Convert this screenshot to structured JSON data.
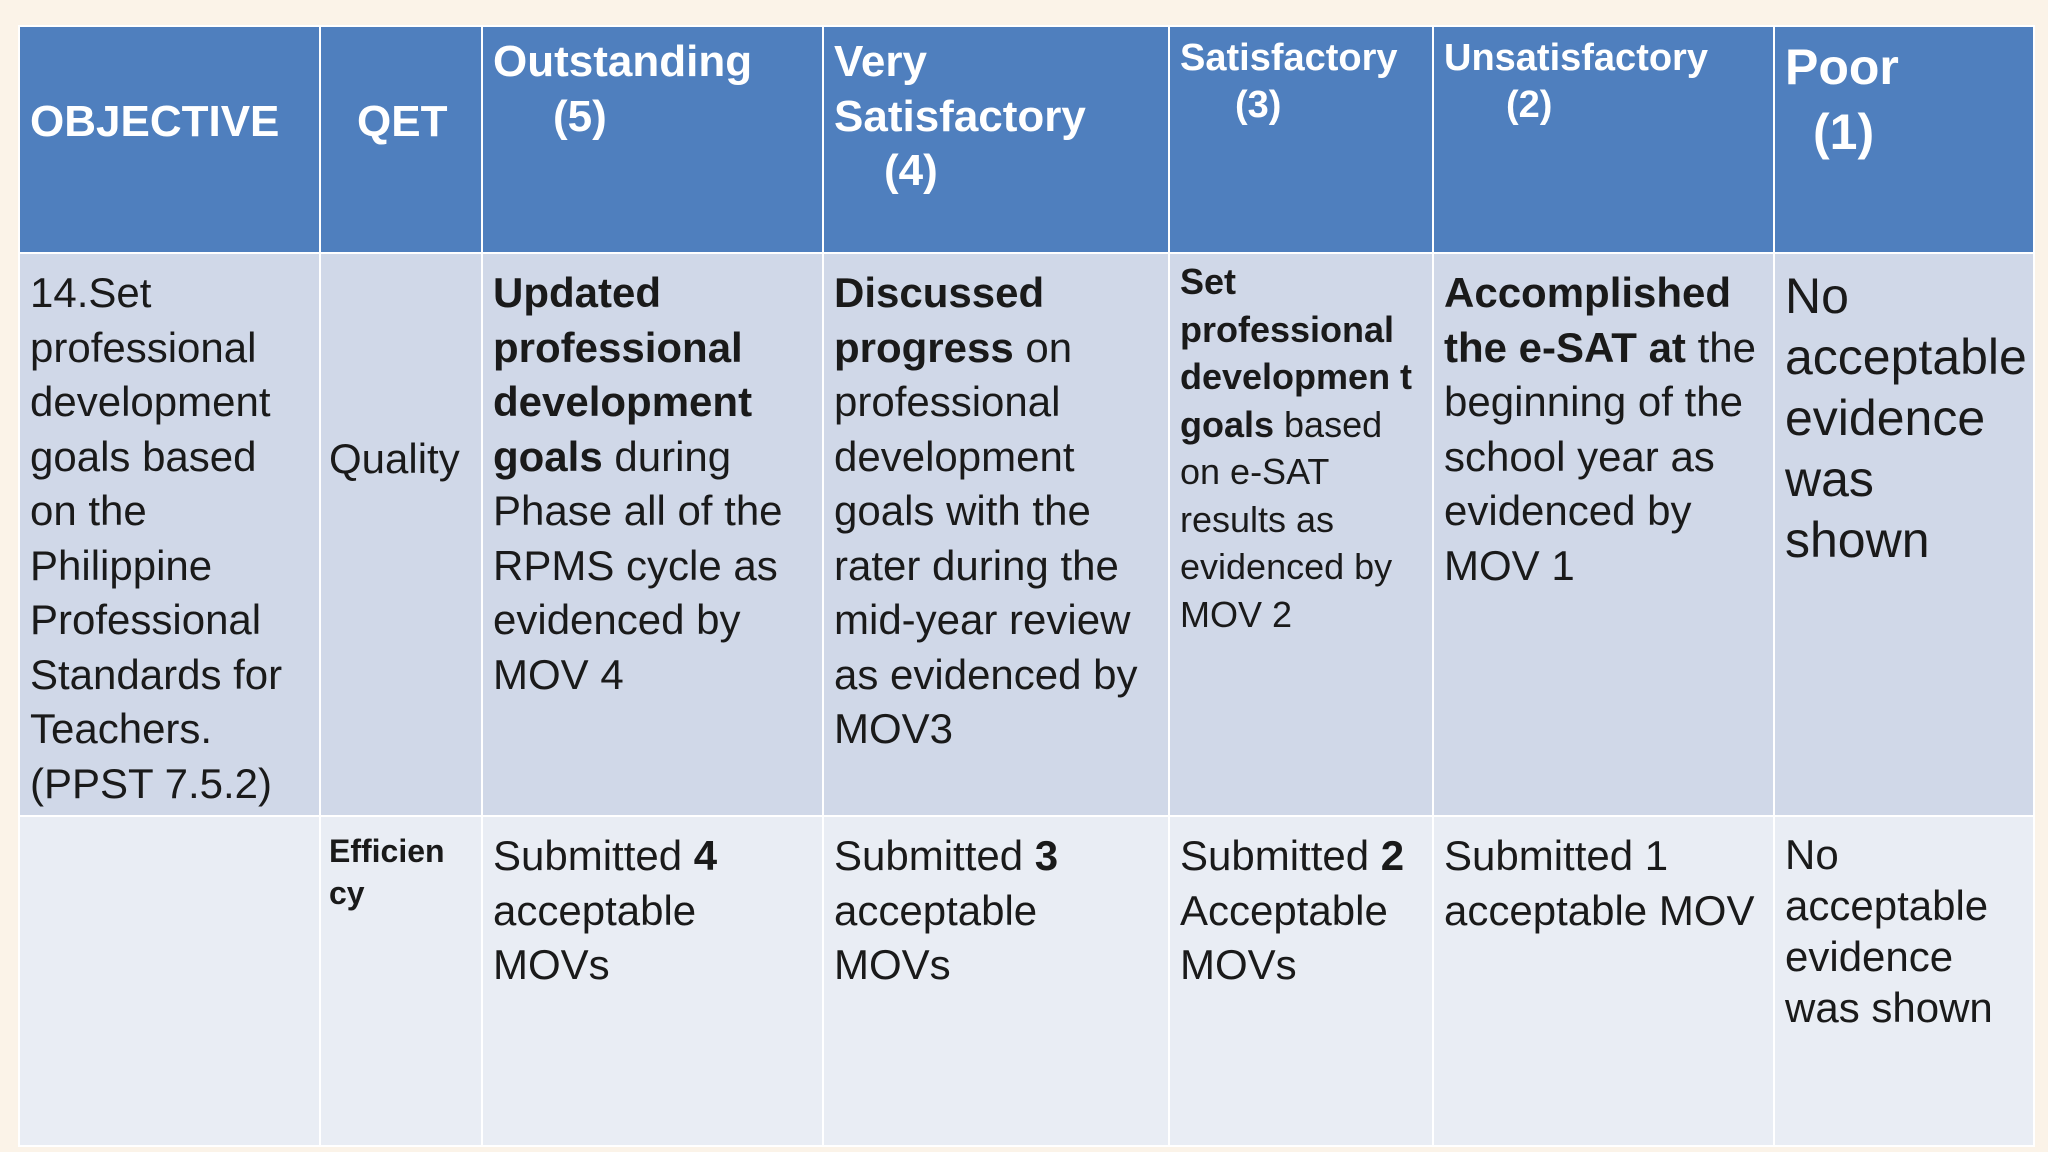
{
  "colors": {
    "header_bg": "#4f7fbe",
    "quality_row_bg": "#d0d8e8",
    "efficiency_row_bg": "#e9edf4",
    "page_bg": "#fbf3e8"
  },
  "headers": {
    "objective": "OBJECTIVE",
    "qet": "QET",
    "outstanding": {
      "label": "Outstanding",
      "score": "(5)"
    },
    "very_satisfactory": {
      "label_line1": "Very",
      "label_line2": "Satisfactory",
      "score": "(4)"
    },
    "satisfactory": {
      "label": "Satisfactory",
      "score": "(3)"
    },
    "unsatisfactory": {
      "label": "Unsatisfactory",
      "score": "(2)"
    },
    "poor": {
      "label": "Poor",
      "score": "(1)"
    }
  },
  "quality_row": {
    "objective": "14.Set professional development goals based on the Philippine Professional Standards for Teachers. (PPST 7.5.2)",
    "qet": "Quality",
    "outstanding": {
      "bold": "Updated professional development goals",
      "rest": " during Phase all of the RPMS cycle as evidenced by MOV 4"
    },
    "very_satisfactory": {
      "bold": "Discussed progress",
      "rest": " on professional development goals with the rater during the mid-year review as evidenced by MOV3"
    },
    "satisfactory": {
      "bold": "Set professional developmen t goals",
      "rest": " based on e-SAT results as evidenced by MOV 2"
    },
    "unsatisfactory": {
      "bold": "Accomplished the e-SAT at",
      "rest": " the beginning of the school year as evidenced by MOV 1"
    },
    "poor": "No acceptable evidence was shown"
  },
  "efficiency_row": {
    "objective": "",
    "qet": "Efficien cy",
    "outstanding": {
      "pre": "Submitted ",
      "bold": "4",
      "post": " acceptable MOVs"
    },
    "very_satisfactory": {
      "pre": "Submitted ",
      "bold": "3",
      "post": " acceptable MOVs"
    },
    "satisfactory": {
      "pre": "Submitted ",
      "bold": "2",
      "post": " Acceptable MOVs"
    },
    "unsatisfactory": "Submitted 1 acceptable MOV",
    "poor": "No acceptable evidence was shown"
  }
}
